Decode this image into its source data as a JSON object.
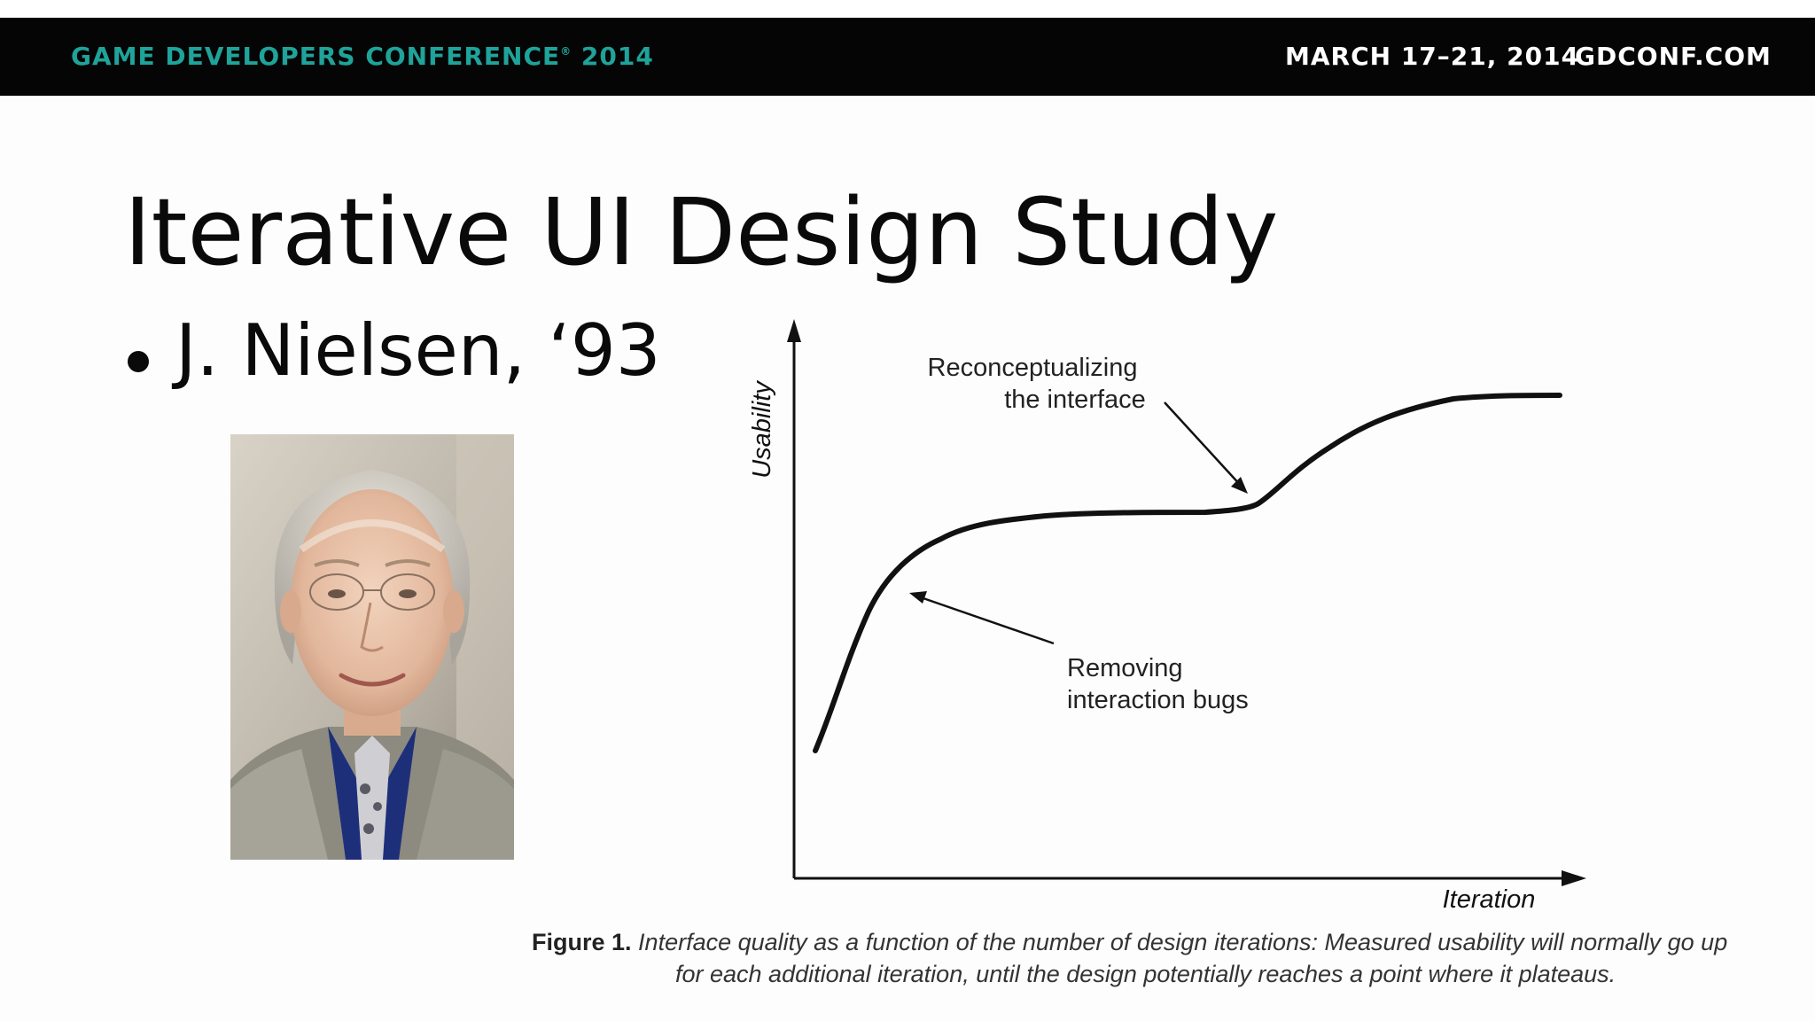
{
  "banner": {
    "conference": "GAME DEVELOPERS CONFERENCE",
    "registered_mark": "®",
    "year": "2014",
    "dates": "MARCH 17–21, 2014",
    "website": "GDCONF.COM",
    "colors": {
      "background": "#050505",
      "conference_text": "#1fa39a",
      "right_text": "#ffffff"
    }
  },
  "slide": {
    "title": "Iterative UI Design Study",
    "bullet": "J. Nielsen, ‘93"
  },
  "portrait": {
    "subject": "photo of Jakob Nielsen"
  },
  "graph": {
    "y_axis_label": "Usability",
    "x_axis_label": "Iteration",
    "annotation_top_line1": "Reconceptualizing",
    "annotation_top_line2": "the interface",
    "annotation_bottom_line1": "Removing",
    "annotation_bottom_line2": "interaction bugs"
  },
  "caption": {
    "label": "Figure 1.",
    "line1": "Interface quality as a function of the number of design iterations: Measured usability will normally go up",
    "line2": "for each additional iteration, until the design potentially reaches a point where it plateaus."
  }
}
